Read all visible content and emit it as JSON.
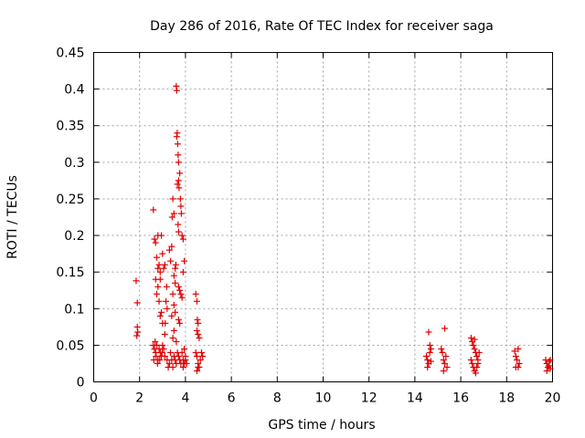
{
  "chart_data": {
    "type": "scatter",
    "title": "Day 286 of 2016, Rate Of TEC Index for receiver saga",
    "xlabel": "GPS time / hours",
    "ylabel": "ROTI / TECUs",
    "xlim": [
      0,
      20
    ],
    "ylim": [
      0,
      0.45
    ],
    "grid": true,
    "marker": "+",
    "color": "#e00000",
    "xticks": [
      "0",
      "2",
      "4",
      "6",
      "8",
      "10",
      "12",
      "14",
      "16",
      "18",
      "20"
    ],
    "yticks": [
      "0",
      "0.05",
      "0.1",
      "0.15",
      "0.2",
      "0.25",
      "0.3",
      "0.35",
      "0.4",
      "0.45"
    ],
    "series": [
      {
        "name": "ROTI",
        "points": [
          [
            1.85,
            0.138
          ],
          [
            1.9,
            0.108
          ],
          [
            1.9,
            0.075
          ],
          [
            1.92,
            0.068
          ],
          [
            1.88,
            0.063
          ],
          [
            2.6,
            0.235
          ],
          [
            2.65,
            0.195
          ],
          [
            2.7,
            0.19
          ],
          [
            2.75,
            0.17
          ],
          [
            2.8,
            0.2
          ],
          [
            2.85,
            0.16
          ],
          [
            2.9,
            0.15
          ],
          [
            2.95,
            0.2
          ],
          [
            3.0,
            0.175
          ],
          [
            2.7,
            0.14
          ],
          [
            2.75,
            0.12
          ],
          [
            2.8,
            0.13
          ],
          [
            2.85,
            0.11
          ],
          [
            2.9,
            0.09
          ],
          [
            2.95,
            0.095
          ],
          [
            3.0,
            0.08
          ],
          [
            2.8,
            0.155
          ],
          [
            2.9,
            0.14
          ],
          [
            2.6,
            0.05
          ],
          [
            2.65,
            0.045
          ],
          [
            2.7,
            0.04
          ],
          [
            2.72,
            0.035
          ],
          [
            2.75,
            0.05
          ],
          [
            2.8,
            0.03
          ],
          [
            2.85,
            0.045
          ],
          [
            2.9,
            0.04
          ],
          [
            2.95,
            0.035
          ],
          [
            3.0,
            0.05
          ],
          [
            2.62,
            0.03
          ],
          [
            2.68,
            0.055
          ],
          [
            2.78,
            0.025
          ],
          [
            2.88,
            0.03
          ],
          [
            2.98,
            0.04
          ],
          [
            3.05,
            0.045
          ],
          [
            3.1,
            0.035
          ],
          [
            3.1,
            0.065
          ],
          [
            3.12,
            0.08
          ],
          [
            3.15,
            0.11
          ],
          [
            3.18,
            0.13
          ],
          [
            3.2,
            0.1
          ],
          [
            3.05,
            0.155
          ],
          [
            3.1,
            0.16
          ],
          [
            3.2,
            0.03
          ],
          [
            3.25,
            0.02
          ],
          [
            3.3,
            0.025
          ],
          [
            3.35,
            0.04
          ],
          [
            3.4,
            0.03
          ],
          [
            3.45,
            0.02
          ],
          [
            3.5,
            0.035
          ],
          [
            3.55,
            0.03
          ],
          [
            3.6,
            0.025
          ],
          [
            3.3,
            0.18
          ],
          [
            3.35,
            0.165
          ],
          [
            3.4,
            0.185
          ],
          [
            3.45,
            0.12
          ],
          [
            3.5,
            0.105
          ],
          [
            3.55,
            0.095
          ],
          [
            3.4,
            0.09
          ],
          [
            3.5,
            0.07
          ],
          [
            3.45,
            0.06
          ],
          [
            3.42,
            0.225
          ],
          [
            3.45,
            0.25
          ],
          [
            3.5,
            0.23
          ],
          [
            3.55,
            0.155
          ],
          [
            3.58,
            0.16
          ],
          [
            3.5,
            0.145
          ],
          [
            3.55,
            0.135
          ],
          [
            3.62,
            0.335
          ],
          [
            3.64,
            0.34
          ],
          [
            3.66,
            0.325
          ],
          [
            3.68,
            0.31
          ],
          [
            3.7,
            0.3
          ],
          [
            3.65,
            0.27
          ],
          [
            3.7,
            0.275
          ],
          [
            3.72,
            0.265
          ],
          [
            3.6,
            0.404
          ],
          [
            3.62,
            0.398
          ],
          [
            3.75,
            0.285
          ],
          [
            3.78,
            0.25
          ],
          [
            3.8,
            0.24
          ],
          [
            3.82,
            0.23
          ],
          [
            3.68,
            0.215
          ],
          [
            3.7,
            0.205
          ],
          [
            3.6,
            0.055
          ],
          [
            3.65,
            0.04
          ],
          [
            3.7,
            0.035
          ],
          [
            3.75,
            0.03
          ],
          [
            3.8,
            0.025
          ],
          [
            3.85,
            0.04
          ],
          [
            3.9,
            0.03
          ],
          [
            3.95,
            0.045
          ],
          [
            4.0,
            0.035
          ],
          [
            3.7,
            0.13
          ],
          [
            3.75,
            0.125
          ],
          [
            3.8,
            0.12
          ],
          [
            3.85,
            0.115
          ],
          [
            3.9,
            0.15
          ],
          [
            3.95,
            0.165
          ],
          [
            3.9,
            0.195
          ],
          [
            3.85,
            0.2
          ],
          [
            3.9,
            0.02
          ],
          [
            3.95,
            0.025
          ],
          [
            4.0,
            0.03
          ],
          [
            4.05,
            0.025
          ],
          [
            3.7,
            0.085
          ],
          [
            3.75,
            0.08
          ],
          [
            4.45,
            0.12
          ],
          [
            4.5,
            0.11
          ],
          [
            4.52,
            0.085
          ],
          [
            4.55,
            0.08
          ],
          [
            4.5,
            0.07
          ],
          [
            4.55,
            0.065
          ],
          [
            4.6,
            0.06
          ],
          [
            4.45,
            0.04
          ],
          [
            4.5,
            0.035
          ],
          [
            4.55,
            0.025
          ],
          [
            4.6,
            0.02
          ],
          [
            4.65,
            0.03
          ],
          [
            4.7,
            0.04
          ],
          [
            4.75,
            0.035
          ],
          [
            4.5,
            0.015
          ],
          [
            4.55,
            0.02
          ],
          [
            14.5,
            0.035
          ],
          [
            14.55,
            0.03
          ],
          [
            14.6,
            0.025
          ],
          [
            14.65,
            0.04
          ],
          [
            14.7,
            0.045
          ],
          [
            14.55,
            0.02
          ],
          [
            14.6,
            0.068
          ],
          [
            14.65,
            0.05
          ],
          [
            14.7,
            0.028
          ],
          [
            15.15,
            0.045
          ],
          [
            15.2,
            0.04
          ],
          [
            15.25,
            0.03
          ],
          [
            15.3,
            0.025
          ],
          [
            15.35,
            0.035
          ],
          [
            15.4,
            0.02
          ],
          [
            15.3,
            0.073
          ],
          [
            15.25,
            0.015
          ],
          [
            16.45,
            0.06
          ],
          [
            16.5,
            0.055
          ],
          [
            16.55,
            0.05
          ],
          [
            16.6,
            0.045
          ],
          [
            16.65,
            0.04
          ],
          [
            16.7,
            0.035
          ],
          [
            16.75,
            0.03
          ],
          [
            16.5,
            0.025
          ],
          [
            16.55,
            0.02
          ],
          [
            16.6,
            0.015
          ],
          [
            16.65,
            0.012
          ],
          [
            16.7,
            0.02
          ],
          [
            16.75,
            0.025
          ],
          [
            16.45,
            0.03
          ],
          [
            16.8,
            0.04
          ],
          [
            16.6,
            0.058
          ],
          [
            18.35,
            0.042
          ],
          [
            18.4,
            0.035
          ],
          [
            18.45,
            0.03
          ],
          [
            18.5,
            0.045
          ],
          [
            18.55,
            0.025
          ],
          [
            18.4,
            0.02
          ],
          [
            18.5,
            0.02
          ],
          [
            19.7,
            0.03
          ],
          [
            19.75,
            0.025
          ],
          [
            19.8,
            0.02
          ],
          [
            19.85,
            0.028
          ],
          [
            19.9,
            0.018
          ],
          [
            19.75,
            0.015
          ],
          [
            19.85,
            0.022
          ],
          [
            19.9,
            0.03
          ]
        ]
      }
    ]
  }
}
